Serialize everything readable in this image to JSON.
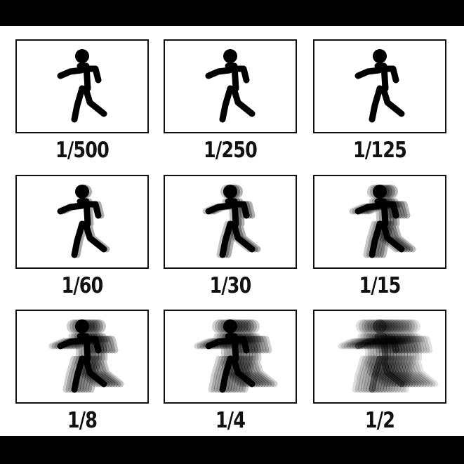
{
  "figure": {
    "panels": [
      {
        "label": "1/500",
        "icon": "running-person-icon",
        "blur_trails": 0
      },
      {
        "label": "1/250",
        "icon": "running-person-icon",
        "blur_trails": 0
      },
      {
        "label": "1/125",
        "icon": "running-person-icon",
        "blur_trails": 0
      },
      {
        "label": "1/60",
        "icon": "running-person-icon",
        "blur_trails": 1
      },
      {
        "label": "1/30",
        "icon": "running-person-icon",
        "blur_trails": 2
      },
      {
        "label": "1/15",
        "icon": "running-person-icon",
        "blur_trails": 4
      },
      {
        "label": "1/8",
        "icon": "running-person-icon",
        "blur_trails": 6
      },
      {
        "label": "1/4",
        "icon": "running-person-icon",
        "blur_trails": 8
      },
      {
        "label": "1/2",
        "icon": "running-person-icon",
        "blur_trails": 12
      }
    ],
    "colors": {
      "figure": "#000000",
      "frame": "#111111",
      "background": "#ffffff"
    }
  }
}
